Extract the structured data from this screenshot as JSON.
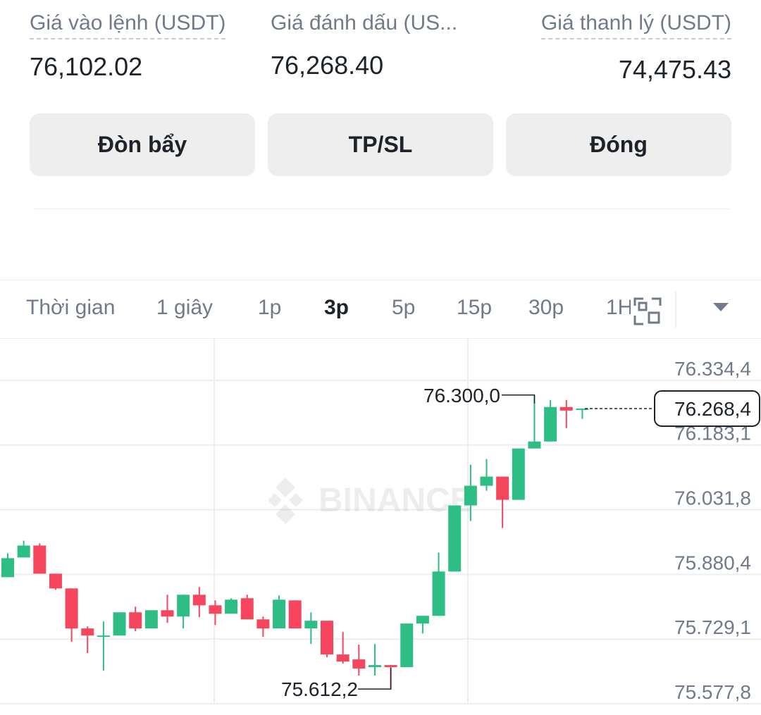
{
  "header": {
    "fields": [
      {
        "label": "Giá vào lệnh (USDT)",
        "value": "76,102.02"
      },
      {
        "label": "Giá đánh dấu (US...",
        "value": "76,268.40"
      },
      {
        "label": "Giá thanh lý (USDT)",
        "value": "74,475.43"
      }
    ],
    "buttons": [
      "Đòn bẩy",
      "TP/SL",
      "Đóng"
    ]
  },
  "tabs": {
    "items": [
      "Thời gian",
      "1 giây",
      "1p",
      "3p",
      "5p",
      "15p",
      "30p",
      "1H"
    ],
    "active": "3p"
  },
  "chart": {
    "watermark": "BINANCE",
    "up_color": "#2ebd85",
    "down_color": "#f6465d",
    "ylim": [
      75576.2,
      76429.8
    ],
    "yticks": [
      {
        "value": 76334.4,
        "label": "76.334,4"
      },
      {
        "value": 76183.1,
        "label": "76.183,1"
      },
      {
        "value": 76031.8,
        "label": "76.031,8"
      },
      {
        "value": 75880.4,
        "label": "75.880,4"
      },
      {
        "value": 75729.1,
        "label": "75.729,1"
      },
      {
        "value": 75577.8,
        "label": "75.577,8"
      }
    ],
    "high": {
      "value": 76300.0,
      "label": "76.300,0"
    },
    "low": {
      "value": 75612.2,
      "label": "75.612,2"
    },
    "last": {
      "value": 76268.4,
      "label": "76.268,4"
    },
    "candles": [
      {
        "o": 75873.9,
        "h": 75929.8,
        "l": 75873.9,
        "c": 75918.3
      },
      {
        "o": 75920.0,
        "h": 75959.4,
        "l": 75920.0,
        "c": 75947.9
      },
      {
        "o": 75947.9,
        "h": 75952.9,
        "l": 75882.1,
        "c": 75882.1
      },
      {
        "o": 75882.1,
        "h": 75882.1,
        "l": 75844.3,
        "c": 75847.6
      },
      {
        "o": 75847.6,
        "h": 75847.6,
        "l": 75722.6,
        "c": 75753.9
      },
      {
        "o": 75753.9,
        "h": 75758.8,
        "l": 75696.3,
        "c": 75737.4
      },
      {
        "o": 75737.4,
        "h": 75770.3,
        "l": 75655.2,
        "c": 75737.4
      },
      {
        "o": 75737.4,
        "h": 75791.7,
        "l": 75737.4,
        "c": 75791.7
      },
      {
        "o": 75791.7,
        "h": 75804.8,
        "l": 75747.3,
        "c": 75753.9
      },
      {
        "o": 75753.9,
        "h": 75796.6,
        "l": 75753.9,
        "c": 75796.6
      },
      {
        "o": 75796.6,
        "h": 75832.8,
        "l": 75767.0,
        "c": 75781.8
      },
      {
        "o": 75781.8,
        "h": 75832.8,
        "l": 75753.9,
        "c": 75832.8
      },
      {
        "o": 75832.8,
        "h": 75850.9,
        "l": 75780.2,
        "c": 75808.1
      },
      {
        "o": 75808.1,
        "h": 75819.6,
        "l": 75762.1,
        "c": 75788.4
      },
      {
        "o": 75788.4,
        "h": 75824.6,
        "l": 75788.4,
        "c": 75821.3
      },
      {
        "o": 75824.6,
        "h": 75832.8,
        "l": 75775.2,
        "c": 75775.2
      },
      {
        "o": 75775.2,
        "h": 75781.8,
        "l": 75734.1,
        "c": 75753.9
      },
      {
        "o": 75753.9,
        "h": 75831.2,
        "l": 75753.9,
        "c": 75821.3
      },
      {
        "o": 75819.6,
        "h": 75819.6,
        "l": 75753.9,
        "c": 75753.9
      },
      {
        "o": 75753.9,
        "h": 75791.7,
        "l": 75717.7,
        "c": 75772.0
      },
      {
        "o": 75772.0,
        "h": 75772.0,
        "l": 75686.4,
        "c": 75693.0
      },
      {
        "o": 75693.0,
        "h": 75745.6,
        "l": 75671.6,
        "c": 75676.6
      },
      {
        "o": 75681.5,
        "h": 75716.0,
        "l": 75643.7,
        "c": 75660.1
      },
      {
        "o": 75663.4,
        "h": 75717.7,
        "l": 75643.7,
        "c": 75668.3
      },
      {
        "o": 75668.3,
        "h": 75668.3,
        "l": 75612.2,
        "c": 75663.4
      },
      {
        "o": 75663.4,
        "h": 75765.4,
        "l": 75663.4,
        "c": 75765.4
      },
      {
        "o": 75765.4,
        "h": 75783.5,
        "l": 75742.3,
        "c": 75783.5
      },
      {
        "o": 75783.5,
        "h": 75931.5,
        "l": 75783.5,
        "c": 75887.1
      },
      {
        "o": 75887.1,
        "h": 76041.7,
        "l": 75887.1,
        "c": 76041.7
      },
      {
        "o": 76041.7,
        "h": 76137.0,
        "l": 76005.5,
        "c": 76087.7
      },
      {
        "o": 76087.7,
        "h": 76150.2,
        "l": 76076.2,
        "c": 76109.1
      },
      {
        "o": 76109.1,
        "h": 76109.1,
        "l": 75989.0,
        "c": 76054.8
      },
      {
        "o": 76054.8,
        "h": 76174.9,
        "l": 76054.8,
        "c": 76174.9
      },
      {
        "o": 76174.9,
        "h": 76300.0,
        "l": 76174.9,
        "c": 76191.3
      },
      {
        "o": 76191.3,
        "h": 76288.4,
        "l": 76191.3,
        "c": 76271.9
      },
      {
        "o": 76271.9,
        "h": 76288.4,
        "l": 76222.6,
        "c": 76263.7
      },
      {
        "o": 76265.3,
        "h": 76268.4,
        "l": 76243.9,
        "c": 76268.4
      }
    ]
  }
}
